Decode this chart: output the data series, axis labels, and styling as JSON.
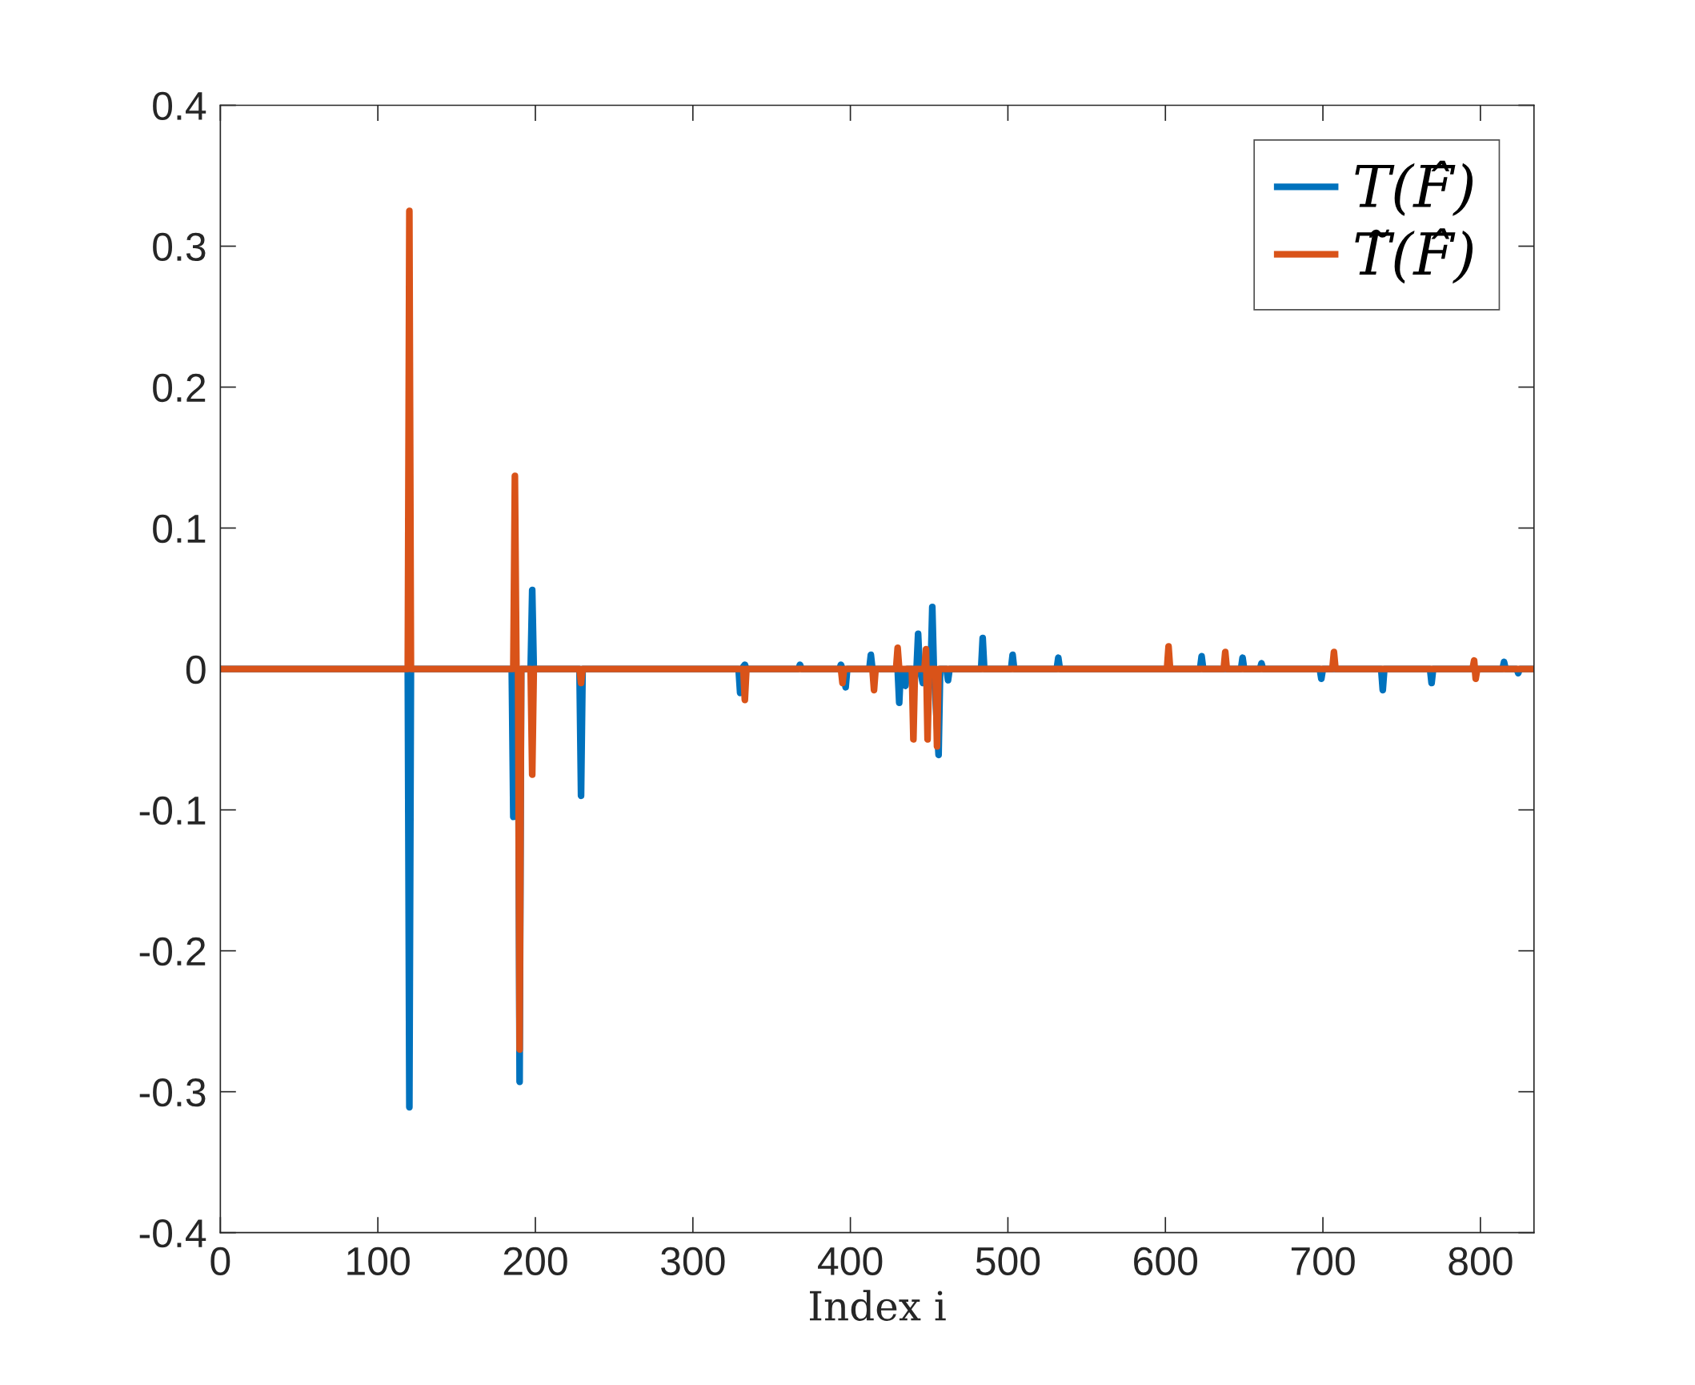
{
  "chart_data": {
    "type": "line",
    "xlabel": "Index i",
    "xlim": [
      0,
      834
    ],
    "ylim": [
      -0.4,
      0.4
    ],
    "xticks": [
      0,
      100,
      200,
      300,
      400,
      500,
      600,
      700,
      800
    ],
    "yticks": [
      -0.4,
      -0.3,
      -0.2,
      -0.1,
      0,
      0.1,
      0.2,
      0.3,
      0.4
    ],
    "grid": false,
    "legend": "top right",
    "marker": "none",
    "line_style": "solid",
    "series": [
      {
        "name": "T(F̂)",
        "color": "#0072bd",
        "x": [
          0,
          119,
          120,
          121,
          185,
          186,
          187,
          189,
          190,
          191,
          197,
          198,
          199,
          228,
          229,
          230,
          329,
          330,
          331,
          333,
          334,
          367,
          368,
          369,
          393,
          394,
          395,
          397,
          398,
          412,
          413,
          414,
          430,
          431,
          432,
          435,
          436,
          442,
          443,
          444,
          446,
          447,
          451,
          452,
          453,
          456,
          457,
          461,
          462,
          463,
          483,
          484,
          485,
          502,
          503,
          504,
          531,
          532,
          533,
          622,
          623,
          624,
          648,
          649,
          650,
          660,
          661,
          662,
          698,
          699,
          700,
          737,
          738,
          739,
          768,
          769,
          770,
          814,
          815,
          816,
          823,
          824,
          825,
          834
        ],
        "values": [
          0,
          0,
          -0.311,
          0,
          0,
          -0.105,
          0,
          0,
          -0.293,
          0,
          0,
          0.056,
          0,
          0,
          -0.09,
          0,
          0,
          -0.017,
          0,
          0.003,
          0,
          0,
          0.003,
          0,
          0,
          0.003,
          0,
          -0.013,
          0,
          0,
          0.01,
          0,
          0,
          -0.024,
          0,
          -0.012,
          0,
          0,
          0.025,
          0,
          -0.01,
          0,
          0,
          0.044,
          0,
          -0.061,
          0,
          0,
          -0.008,
          0,
          0,
          0.022,
          0,
          0,
          0.01,
          0,
          0,
          0.008,
          0,
          0,
          0.009,
          0,
          0,
          0.008,
          0,
          0,
          0.004,
          0,
          0,
          -0.007,
          0,
          0,
          -0.015,
          0,
          0,
          -0.01,
          0,
          0,
          0.005,
          0,
          0,
          -0.003,
          0,
          0
        ]
      },
      {
        "name": "T̃(F̂)",
        "color": "#d95319",
        "x": [
          0,
          119,
          120,
          121,
          186,
          187,
          188,
          189,
          190,
          191,
          197,
          198,
          199,
          228,
          229,
          230,
          332,
          333,
          334,
          394,
          395,
          396,
          414,
          415,
          416,
          429,
          430,
          431,
          439,
          440,
          441,
          447,
          448,
          449,
          450,
          454,
          455,
          456,
          601,
          602,
          603,
          637,
          638,
          639,
          706,
          707,
          708,
          795,
          796,
          797,
          798,
          834
        ],
        "values": [
          0,
          0,
          0.325,
          0,
          0,
          0.137,
          0,
          0,
          -0.27,
          0,
          0,
          -0.075,
          0,
          0,
          -0.01,
          0,
          0,
          -0.022,
          0,
          0,
          -0.01,
          0,
          0,
          -0.015,
          0,
          0,
          0.015,
          0,
          0,
          -0.05,
          0,
          0,
          0.014,
          -0.05,
          0,
          0,
          -0.055,
          0,
          0,
          0.016,
          0,
          0,
          0.012,
          0,
          0,
          0.012,
          0,
          0,
          0.006,
          -0.007,
          0,
          0
        ]
      }
    ]
  }
}
